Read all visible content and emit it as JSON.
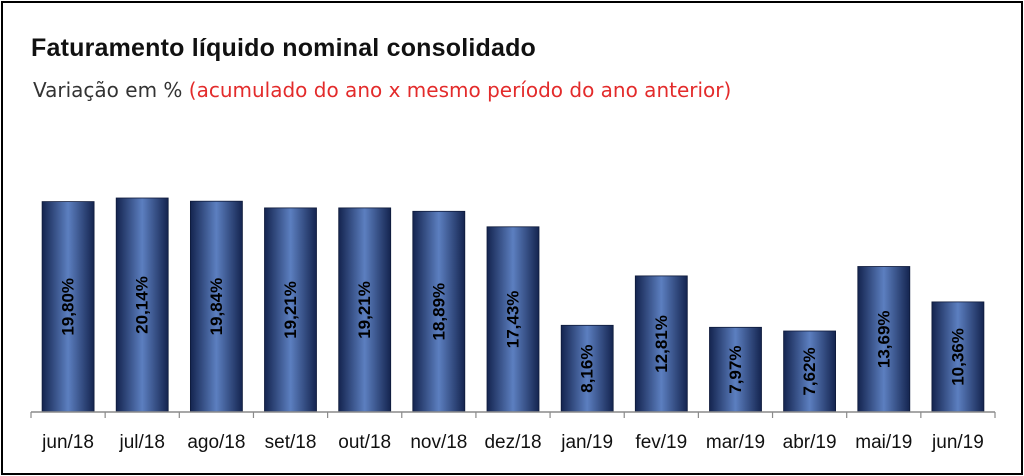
{
  "title": "Faturamento líquido nominal consolidado",
  "subtitle": {
    "prefix": "Variação em %",
    "highlight": "(acumulado do ano x mesmo período do ano anterior)"
  },
  "colors": {
    "bar_dark": "#14244f",
    "bar_light": "#5c7fc0",
    "highlight": "#e32b2b",
    "axis": "#8a8a8a"
  },
  "chart_data": {
    "type": "bar",
    "title": "Faturamento líquido nominal consolidado",
    "subtitle": "Variação em % (acumulado do ano x mesmo período do ano anterior)",
    "categories": [
      "jun/18",
      "jul/18",
      "ago/18",
      "set/18",
      "out/18",
      "nov/18",
      "dez/18",
      "jan/19",
      "fev/19",
      "mar/19",
      "abr/19",
      "mai/19",
      "jun/19"
    ],
    "values": [
      19.8,
      20.14,
      19.84,
      19.21,
      19.21,
      18.89,
      17.43,
      8.16,
      12.81,
      7.97,
      7.62,
      13.69,
      10.36
    ],
    "labels": [
      "19,80%",
      "20,14%",
      "19,84%",
      "19,21%",
      "19,21%",
      "18,89%",
      "17,43%",
      "8,16%",
      "12,81%",
      "7,97%",
      "7,62%",
      "13,69%",
      "10,36%"
    ],
    "xlabel": "",
    "ylabel": "",
    "ylim": [
      0,
      20.14
    ],
    "grid": false,
    "legend": "none"
  }
}
